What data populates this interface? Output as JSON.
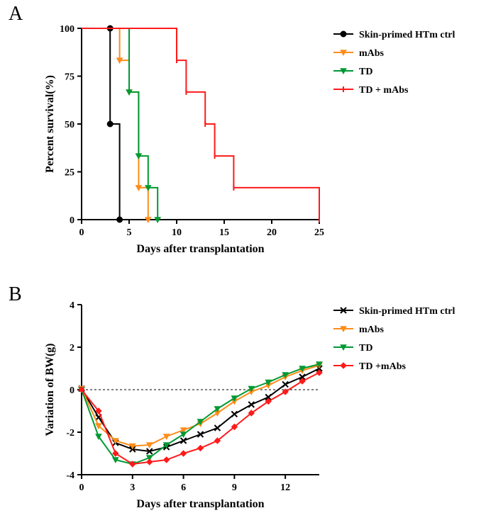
{
  "panel_labels": {
    "A": "A",
    "B": "B"
  },
  "panelA": {
    "type": "survival-step",
    "title_x": "Days after transplantation",
    "title_y": "Percent survival(%)",
    "xlim": [
      0,
      25
    ],
    "ylim": [
      0,
      100
    ],
    "xtick_step": 5,
    "ytick_step": 25,
    "axis_color": "#000000",
    "tick_fontsize": 14,
    "label_fontsize": 16,
    "legend_fontsize": 14,
    "line_width": 2,
    "series": [
      {
        "name": "Skin-primed HTm ctrl",
        "color": "#000000",
        "marker": "circle",
        "points": [
          [
            0,
            100
          ],
          [
            3,
            100
          ],
          [
            3,
            50
          ],
          [
            4,
            50
          ],
          [
            4,
            0
          ]
        ],
        "event_markers": [
          [
            3,
            100
          ],
          [
            3,
            50
          ],
          [
            4,
            0
          ]
        ]
      },
      {
        "name": "mAbs",
        "color": "#ff8c1a",
        "marker": "triangle-down",
        "points": [
          [
            0,
            100
          ],
          [
            4,
            100
          ],
          [
            4,
            83.3
          ],
          [
            5,
            83.3
          ],
          [
            5,
            66.7
          ],
          [
            6,
            66.7
          ],
          [
            6,
            16.7
          ],
          [
            7,
            16.7
          ],
          [
            7,
            0
          ]
        ],
        "event_markers": [
          [
            4,
            83.3
          ],
          [
            5,
            66.7
          ],
          [
            6,
            16.7
          ],
          [
            7,
            0
          ]
        ]
      },
      {
        "name": "TD",
        "color": "#009933",
        "marker": "triangle-down",
        "points": [
          [
            0,
            100
          ],
          [
            5,
            100
          ],
          [
            5,
            66.7
          ],
          [
            6,
            66.7
          ],
          [
            6,
            33.3
          ],
          [
            7,
            33.3
          ],
          [
            7,
            16.7
          ],
          [
            8,
            16.7
          ],
          [
            8,
            0
          ]
        ],
        "event_markers": [
          [
            5,
            66.7
          ],
          [
            6,
            33.3
          ],
          [
            7,
            16.7
          ],
          [
            8,
            0
          ]
        ]
      },
      {
        "name": "TD + mAbs",
        "color": "#ff1a1a",
        "marker": "tick",
        "points": [
          [
            0,
            100
          ],
          [
            10,
            100
          ],
          [
            10,
            83.3
          ],
          [
            11,
            83.3
          ],
          [
            11,
            66.7
          ],
          [
            13,
            66.7
          ],
          [
            13,
            50
          ],
          [
            14,
            50
          ],
          [
            14,
            33.3
          ],
          [
            16,
            33.3
          ],
          [
            16,
            16.7
          ],
          [
            25,
            16.7
          ],
          [
            25,
            0
          ]
        ],
        "event_markers": [
          [
            10,
            83.3
          ],
          [
            11,
            66.7
          ],
          [
            13,
            50
          ],
          [
            14,
            33.3
          ],
          [
            16,
            16.7
          ],
          [
            25,
            0
          ]
        ]
      }
    ]
  },
  "panelB": {
    "type": "line",
    "title_x": "Days after transplantation",
    "title_y": "Variation of BW(g)",
    "xlim": [
      0,
      14
    ],
    "ylim": [
      -4,
      4
    ],
    "xtick_step": 3,
    "ytick_step": 2,
    "axis_color": "#000000",
    "tick_fontsize": 14,
    "label_fontsize": 16,
    "legend_fontsize": 14,
    "line_width": 2,
    "zero_line_dash": "3,3",
    "series": [
      {
        "name": "Skin-primed HTm ctrl",
        "color": "#000000",
        "marker": "x",
        "points": [
          [
            0,
            0.05
          ],
          [
            1,
            -1.3
          ],
          [
            2,
            -2.5
          ],
          [
            3,
            -2.8
          ],
          [
            4,
            -2.9
          ],
          [
            5,
            -2.7
          ],
          [
            6,
            -2.4
          ],
          [
            7,
            -2.1
          ],
          [
            8,
            -1.8
          ],
          [
            9,
            -1.15
          ],
          [
            10,
            -0.7
          ],
          [
            11,
            -0.35
          ],
          [
            12,
            0.25
          ],
          [
            13,
            0.6
          ],
          [
            14,
            1.0
          ]
        ]
      },
      {
        "name": "mAbs",
        "color": "#ff8c1a",
        "marker": "triangle-down",
        "points": [
          [
            0,
            0.05
          ],
          [
            1,
            -1.7
          ],
          [
            2,
            -2.4
          ],
          [
            3,
            -2.65
          ],
          [
            4,
            -2.6
          ],
          [
            5,
            -2.2
          ],
          [
            6,
            -1.9
          ],
          [
            7,
            -1.6
          ],
          [
            8,
            -1.1
          ],
          [
            9,
            -0.55
          ],
          [
            10,
            -0.1
          ],
          [
            11,
            0.2
          ],
          [
            12,
            0.6
          ],
          [
            13,
            0.9
          ],
          [
            14,
            1.15
          ]
        ]
      },
      {
        "name": "TD",
        "color": "#009933",
        "marker": "triangle-down-filled",
        "points": [
          [
            0,
            0.0
          ],
          [
            1,
            -2.2
          ],
          [
            2,
            -3.3
          ],
          [
            3,
            -3.5
          ],
          [
            4,
            -3.2
          ],
          [
            5,
            -2.6
          ],
          [
            6,
            -2.1
          ],
          [
            7,
            -1.5
          ],
          [
            8,
            -0.9
          ],
          [
            9,
            -0.4
          ],
          [
            10,
            0.05
          ],
          [
            11,
            0.35
          ],
          [
            12,
            0.7
          ],
          [
            13,
            1.0
          ],
          [
            14,
            1.2
          ]
        ]
      },
      {
        "name": "TD +mAbs",
        "color": "#ff1a1a",
        "marker": "diamond",
        "points": [
          [
            0,
            0.0
          ],
          [
            1,
            -1.0
          ],
          [
            2,
            -3.0
          ],
          [
            3,
            -3.5
          ],
          [
            4,
            -3.4
          ],
          [
            5,
            -3.3
          ],
          [
            6,
            -3.0
          ],
          [
            7,
            -2.75
          ],
          [
            8,
            -2.4
          ],
          [
            9,
            -1.75
          ],
          [
            10,
            -1.1
          ],
          [
            11,
            -0.55
          ],
          [
            12,
            -0.1
          ],
          [
            13,
            0.4
          ],
          [
            14,
            0.8
          ]
        ]
      }
    ]
  }
}
